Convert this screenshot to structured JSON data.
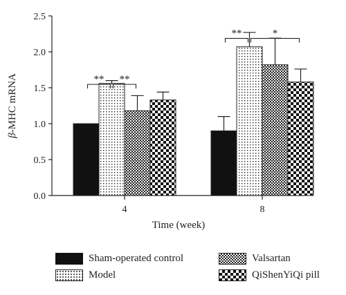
{
  "chart_data": {
    "type": "bar",
    "xlabel": "Time (week)",
    "ylabel": "β-MHC mRNA",
    "ylabel_greek": "β",
    "ylabel_rest": "-MHC mRNA",
    "ylim": [
      0,
      2.5
    ],
    "yticks": [
      "0.0",
      "0.5",
      "1.0",
      "1.5",
      "2.0",
      "2.5"
    ],
    "categories": [
      "4",
      "8"
    ],
    "series": [
      {
        "name": "Sham-operated control",
        "values": [
          1.0,
          0.9
        ],
        "errors": [
          0.0,
          0.2
        ],
        "pattern": "solid"
      },
      {
        "name": "Model",
        "values": [
          1.56,
          2.07
        ],
        "errors": [
          0.04,
          0.2
        ],
        "pattern": "dots"
      },
      {
        "name": "Valsartan",
        "values": [
          1.18,
          1.82
        ],
        "errors": [
          0.21,
          0.37
        ],
        "pattern": "crosshatch"
      },
      {
        "name": "QiShenYiQi pill",
        "values": [
          1.33,
          1.58
        ],
        "errors": [
          0.11,
          0.18
        ],
        "pattern": "checker"
      }
    ],
    "annotations": [
      {
        "category": 0,
        "from": 0,
        "to": 1,
        "label": "**",
        "level": 1.72
      },
      {
        "category": 0,
        "from": 1,
        "to": 2,
        "label": "**",
        "level": 1.72
      },
      {
        "category": 1,
        "from": 0,
        "to": 1,
        "label": "**",
        "level": 2.36
      },
      {
        "category": 1,
        "from": 1,
        "to": 3,
        "label": "*",
        "level": 2.36
      }
    ],
    "legend_position": "bottom"
  }
}
